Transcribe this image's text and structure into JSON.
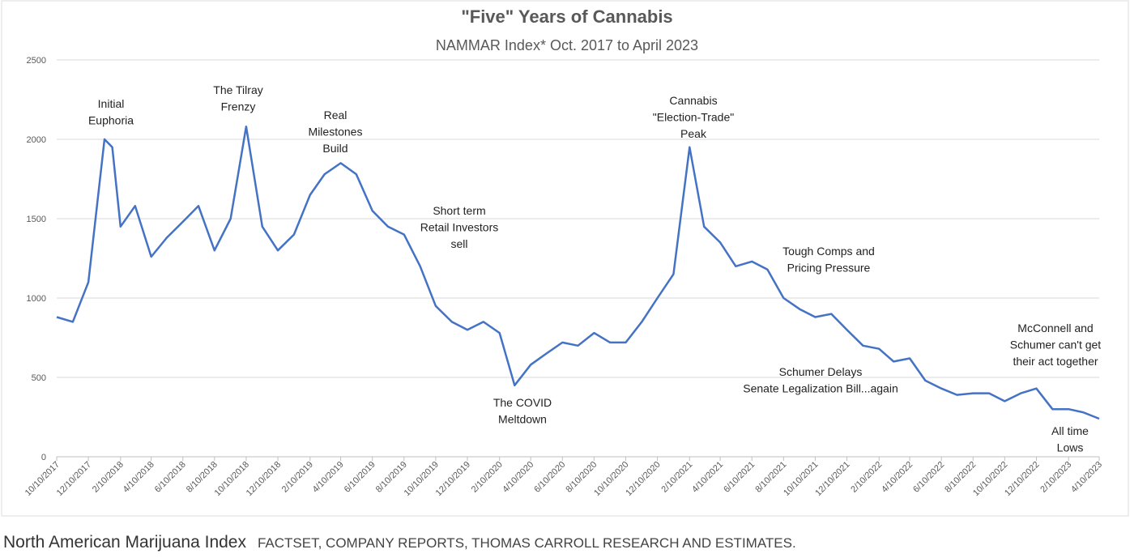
{
  "chart_data": {
    "type": "line",
    "title": "\"Five\" Years of Cannabis",
    "subtitle": "NAMMAR Index* Oct. 2017 to April 2023",
    "x": [
      "10/10/2017",
      "11/10/2017",
      "12/10/2017",
      "1/10/2018",
      "1/25/2018",
      "2/10/2018",
      "3/10/2018",
      "4/10/2018",
      "5/10/2018",
      "6/10/2018",
      "7/10/2018",
      "8/10/2018",
      "9/10/2018",
      "10/10/2018",
      "11/10/2018",
      "12/10/2018",
      "1/10/2019",
      "2/10/2019",
      "3/10/2019",
      "4/10/2019",
      "5/10/2019",
      "6/10/2019",
      "7/10/2019",
      "8/10/2019",
      "9/10/2019",
      "10/10/2019",
      "11/10/2019",
      "12/10/2019",
      "1/10/2020",
      "2/10/2020",
      "3/10/2020",
      "4/10/2020",
      "5/10/2020",
      "6/10/2020",
      "7/10/2020",
      "8/10/2020",
      "9/10/2020",
      "10/10/2020",
      "11/10/2020",
      "12/10/2020",
      "1/10/2021",
      "2/10/2021",
      "3/10/2021",
      "4/10/2021",
      "5/10/2021",
      "6/10/2021",
      "7/10/2021",
      "8/10/2021",
      "9/10/2021",
      "10/10/2021",
      "11/10/2021",
      "12/10/2021",
      "1/10/2022",
      "2/10/2022",
      "3/10/2022",
      "4/10/2022",
      "5/10/2022",
      "6/10/2022",
      "7/10/2022",
      "8/10/2022",
      "9/10/2022",
      "10/10/2022",
      "11/10/2022",
      "12/10/2022",
      "1/10/2023",
      "2/10/2023",
      "3/10/2023",
      "4/10/2023"
    ],
    "series": [
      {
        "color": "#4472c4",
        "values": [
          880,
          850,
          1100,
          2000,
          1950,
          1450,
          1580,
          1260,
          1380,
          1480,
          1580,
          1300,
          1500,
          2080,
          1450,
          1300,
          1400,
          1650,
          1780,
          1850,
          1780,
          1550,
          1450,
          1400,
          1200,
          950,
          850,
          800,
          850,
          780,
          450,
          580,
          650,
          720,
          700,
          780,
          720,
          720,
          850,
          1000,
          1150,
          1950,
          1450,
          1350,
          1200,
          1230,
          1180,
          1000,
          930,
          880,
          900,
          800,
          700,
          680,
          600,
          620,
          480,
          430,
          390,
          400,
          400,
          350,
          400,
          430,
          300,
          300,
          280,
          240
        ]
      }
    ],
    "xlim": [
      "10/10/2017",
      "4/10/2023"
    ],
    "xticks": [
      "10/10/2017",
      "12/10/2017",
      "2/10/2018",
      "4/10/2018",
      "6/10/2018",
      "8/10/2018",
      "10/10/2018",
      "12/10/2018",
      "2/10/2019",
      "4/10/2019",
      "6/10/2019",
      "8/10/2019",
      "10/10/2019",
      "12/10/2019",
      "2/10/2020",
      "4/10/2020",
      "6/10/2020",
      "8/10/2020",
      "10/10/2020",
      "12/10/2020",
      "2/10/2021",
      "4/10/2021",
      "6/10/2021",
      "8/10/2021",
      "10/10/2021",
      "12/10/2021",
      "2/10/2022",
      "4/10/2022",
      "6/10/2022",
      "8/10/2022",
      "10/10/2022",
      "12/10/2022",
      "2/10/2023",
      "4/10/2023"
    ],
    "ylim": [
      0,
      2500
    ],
    "yticks": [
      0,
      500,
      1000,
      1500,
      2000,
      2500
    ],
    "grid": true,
    "annotations": [
      [
        "Initial",
        "Euphoria"
      ],
      [
        "The Tilray",
        "Frenzy"
      ],
      [
        "Real",
        "Milestones",
        "Build"
      ],
      [
        "Short term",
        "Retail Investors",
        "sell"
      ],
      [
        "The COVID",
        "Meltdown"
      ],
      [
        "Cannabis",
        "\"Election-Trade\"",
        "Peak"
      ],
      [
        "Tough Comps and",
        "Pricing Pressure"
      ],
      [
        "Schumer Delays",
        "Senate Legalization Bill...again"
      ],
      [
        "McConnell and",
        "Schumer can't get",
        "their act together"
      ],
      [
        "All time",
        "Lows"
      ]
    ]
  },
  "caption": {
    "title": "North American Marijuana Index",
    "source": "FACTSET, COMPANY REPORTS, THOMAS CARROLL RESEARCH AND ESTIMATES."
  }
}
